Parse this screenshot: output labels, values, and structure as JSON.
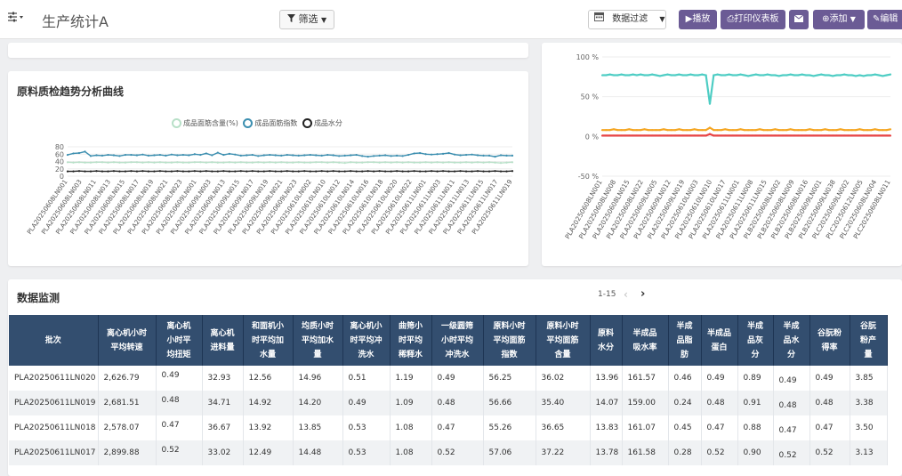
{
  "header": {
    "settings_icon": "sliders-icon",
    "title": "生产统计A",
    "filter_label": "筛选",
    "date_filter_label": "数据过滤",
    "buttons": {
      "play": "播放",
      "print": "打印仪表板",
      "mail_icon": "envelope-icon",
      "add": "添加",
      "edit": "编辑"
    }
  },
  "left_chart": {
    "title": "原料质检趋势分析曲线",
    "legend": [
      "成品面筋含量(%)",
      "成品面筋指数",
      "成品水分"
    ],
    "yticks": [
      "80",
      "60",
      "40",
      "20",
      "0"
    ],
    "xticks": [
      "PLA20250608LN001",
      "PLA20250608LN003",
      "PLA20250608LN011",
      "PLA20250608LN013",
      "PLA20250608LN015",
      "PLA20250608LN017",
      "PLA20250608LN019",
      "PLA20250608LN021",
      "PLA20250608LN023",
      "PLA20250609LN001",
      "PLA20250609LN003",
      "PLA20250609LN013",
      "PLA20250609LN015",
      "PLA20250609LN017",
      "PLA20250609LN019",
      "PLA20250609LN021",
      "PLA20250609LN023",
      "PLA20250610LN002",
      "PLA20250610LN010",
      "PLA20250610LN012",
      "PLA20250610LN014",
      "PLA20250610LN016",
      "PLA20250610LN018",
      "PLA20250610LN020",
      "PLA20250610LN022",
      "PLA20250611LN001",
      "PLA20250611LN003",
      "PLA20250611LN011",
      "PLA20250611LN013",
      "PLA20250611LN015",
      "PLA20250611LN017",
      "PLA20250611LN019"
    ],
    "colors": [
      "#b8e0c8",
      "#3c8fb0",
      "#222222"
    ]
  },
  "right_chart": {
    "yticks": [
      "100 %",
      "50 %",
      "0 %",
      "-50 %"
    ],
    "xticks": [
      "PLA20250608LN001",
      "PLA20250608LN008",
      "PLA20250608LN015",
      "PLA20250608LN022",
      "PLA20250609LN005",
      "PLA20250609LN012",
      "PLA20250609LN019",
      "PLA20250610LN003",
      "PLA20250610LN010",
      "PLA20250610LN017",
      "PLA20250611LN001",
      "PLA20250611LN008",
      "PLA20250611LN015",
      "PLB20250608LN002",
      "PLB20250608LN009",
      "PLB20250608LN016",
      "PLB20250609LN001",
      "PLB20250609LN038",
      "PLC20250609LN002",
      "PLC20250612LN005",
      "PLC20250608LN004",
      "PLC20250608LN011"
    ],
    "colors": [
      "#4ecdc4",
      "#f5a623",
      "#e84545"
    ]
  },
  "chart_data": [
    {
      "type": "line",
      "title": "原料质检趋势分析曲线",
      "ylim": [
        0,
        80
      ],
      "series": [
        {
          "name": "成品面筋含量(%)",
          "values": [
            38,
            37,
            38,
            37,
            37,
            38,
            38,
            37,
            38,
            37,
            37,
            38,
            38,
            37,
            38,
            37,
            38,
            37,
            37,
            38,
            37,
            37,
            38,
            38,
            37,
            38,
            37,
            37,
            38,
            37,
            38,
            37,
            37,
            38,
            37,
            38,
            37,
            38,
            37,
            37,
            38,
            37,
            37,
            38,
            38,
            37,
            38,
            37,
            36,
            38,
            37,
            37,
            38,
            38,
            37,
            38,
            37,
            38,
            37,
            38,
            37,
            37,
            38,
            37,
            38,
            37,
            38,
            37,
            37,
            38,
            37,
            38,
            37,
            38,
            37,
            36,
            37,
            38
          ]
        },
        {
          "name": "成品面筋指数",
          "values": [
            58,
            62,
            63,
            67,
            55,
            57,
            56,
            58,
            57,
            55,
            58,
            58,
            57,
            59,
            56,
            57,
            58,
            56,
            59,
            57,
            58,
            57,
            60,
            58,
            62,
            57,
            64,
            58,
            61,
            59,
            56,
            57,
            58,
            55,
            57,
            58,
            57,
            56,
            58,
            57,
            56,
            57,
            58,
            57,
            56,
            58,
            57,
            55,
            56,
            57,
            58,
            55,
            53,
            55,
            56,
            57,
            55,
            56,
            55,
            58,
            62,
            63,
            60,
            59,
            60,
            61,
            63,
            59,
            57,
            58,
            59,
            57,
            56,
            56,
            53,
            57,
            56,
            56
          ]
        },
        {
          "name": "成品水分",
          "values": [
            13,
            13,
            14,
            13,
            13,
            14,
            13,
            13,
            14,
            13,
            13,
            14,
            13,
            14,
            13,
            13,
            14,
            13,
            13,
            14,
            13,
            13,
            14,
            13,
            14,
            13,
            13,
            14,
            13,
            13,
            14,
            13,
            14,
            13,
            13,
            14,
            13,
            13,
            14,
            13,
            13,
            14,
            13,
            13,
            14,
            13,
            14,
            13,
            13,
            14,
            13,
            13,
            14,
            13,
            14,
            13,
            13,
            14,
            13,
            13,
            14,
            13,
            13,
            14,
            13,
            14,
            13,
            13,
            14,
            13,
            13,
            14,
            13,
            13,
            14,
            13,
            13,
            14
          ]
        }
      ]
    },
    {
      "type": "line",
      "ylim": [
        -50,
        100
      ],
      "series": [
        {
          "values": [
            77,
            77,
            78,
            77,
            77,
            78,
            77,
            77,
            78,
            77,
            78,
            77,
            77,
            78,
            77,
            76,
            77,
            78,
            77,
            77,
            78,
            77,
            77,
            78,
            77,
            77,
            78,
            77,
            41,
            77,
            78,
            77,
            77,
            78,
            77,
            77,
            78,
            77,
            76,
            77,
            78,
            77,
            77,
            78,
            77,
            77,
            76,
            77,
            77,
            78,
            77,
            77,
            78,
            77,
            77,
            76,
            77,
            78,
            77,
            77,
            76,
            77,
            77,
            78,
            77,
            77,
            76,
            77,
            76,
            77,
            77,
            78,
            77,
            76,
            77,
            78
          ]
        },
        {
          "values": [
            8,
            8,
            8,
            9,
            8,
            8,
            8,
            9,
            8,
            8,
            8,
            9,
            8,
            8,
            8,
            8,
            9,
            8,
            8,
            8,
            9,
            8,
            8,
            8,
            9,
            8,
            8,
            8,
            11,
            8,
            8,
            8,
            9,
            8,
            8,
            8,
            9,
            8,
            8,
            8,
            8,
            9,
            8,
            8,
            8,
            9,
            8,
            8,
            8,
            9,
            8,
            8,
            8,
            8,
            9,
            8,
            8,
            8,
            9,
            8,
            8,
            8,
            9,
            8,
            8,
            8,
            8,
            9,
            8,
            8,
            8,
            9,
            8,
            8,
            8,
            9
          ]
        },
        {
          "values": [
            1,
            1,
            1,
            1,
            1,
            1,
            1,
            1,
            1,
            1,
            1,
            1,
            1,
            1,
            1,
            1,
            1,
            1,
            1,
            1,
            1,
            1,
            1,
            1,
            1,
            1,
            1,
            1,
            3,
            1,
            1,
            1,
            1,
            1,
            1,
            1,
            1,
            1,
            1,
            1,
            1,
            1,
            1,
            1,
            1,
            1,
            1,
            1,
            1,
            1,
            1,
            1,
            1,
            1,
            1,
            1,
            1,
            1,
            1,
            1,
            1,
            1,
            1,
            1,
            1,
            1,
            1,
            1,
            1,
            1,
            1,
            1,
            1,
            1,
            1,
            1
          ]
        }
      ]
    }
  ],
  "monitor": {
    "title": "数据监测",
    "pager": "1-15",
    "columns": [
      [
        "批次"
      ],
      [
        "离心机小时",
        "平均转速"
      ],
      [
        "离心机",
        "小时平",
        "均扭矩"
      ],
      [
        "离心机",
        "进料量"
      ],
      [
        "和面机小",
        "时平均加",
        "水量"
      ],
      [
        "均质小时",
        "平均加水",
        "量"
      ],
      [
        "离心机小",
        "时平均冲",
        "洗水"
      ],
      [
        "曲筛小",
        "时平均",
        "稀释水"
      ],
      [
        "一级圆筛",
        "小时平均",
        "冲洗水"
      ],
      [
        "原料小时",
        "平均面筋",
        "指数"
      ],
      [
        "原料小时",
        "平均面筋",
        "含量"
      ],
      [
        "原料",
        "水分"
      ],
      [
        "半成品",
        "吸水率"
      ],
      [
        "半成",
        "品脂",
        "肪"
      ],
      [
        "半成品",
        "蛋白"
      ],
      [
        "半成",
        "品灰",
        "分"
      ],
      [
        "半成",
        "品水",
        "分"
      ],
      [
        "谷朊粉",
        "得率"
      ],
      [
        "谷朊",
        "粉产",
        "量"
      ]
    ],
    "rows": [
      [
        "PLA20250611LN020",
        "2,626.79",
        "0.49",
        "32.93",
        "12.56",
        "14.96",
        "0.51",
        "1.19",
        "0.49",
        "56.25",
        "36.02",
        "13.96",
        "161.57",
        "0.46",
        "0.49",
        "0.89",
        "0.49",
        "0.49",
        "3.85"
      ],
      [
        "PLA20250611LN019",
        "2,681.51",
        "0.48",
        "34.71",
        "14.92",
        "14.20",
        "0.49",
        "1.09",
        "0.48",
        "56.66",
        "35.40",
        "14.07",
        "159.00",
        "0.24",
        "0.48",
        "0.91",
        "0.48",
        "0.48",
        "3.38"
      ],
      [
        "PLA20250611LN018",
        "2,578.07",
        "0.47",
        "36.67",
        "13.92",
        "13.85",
        "0.53",
        "1.08",
        "0.47",
        "55.26",
        "36.65",
        "13.83",
        "161.07",
        "0.45",
        "0.47",
        "0.88",
        "0.47",
        "0.47",
        "3.50"
      ],
      [
        "PLA20250611LN017",
        "2,899.88",
        "0.52",
        "33.02",
        "12.49",
        "14.48",
        "0.53",
        "1.08",
        "0.52",
        "57.06",
        "37.22",
        "13.78",
        "161.58",
        "0.28",
        "0.52",
        "0.90",
        "0.52",
        "0.52",
        "3.13"
      ]
    ]
  }
}
